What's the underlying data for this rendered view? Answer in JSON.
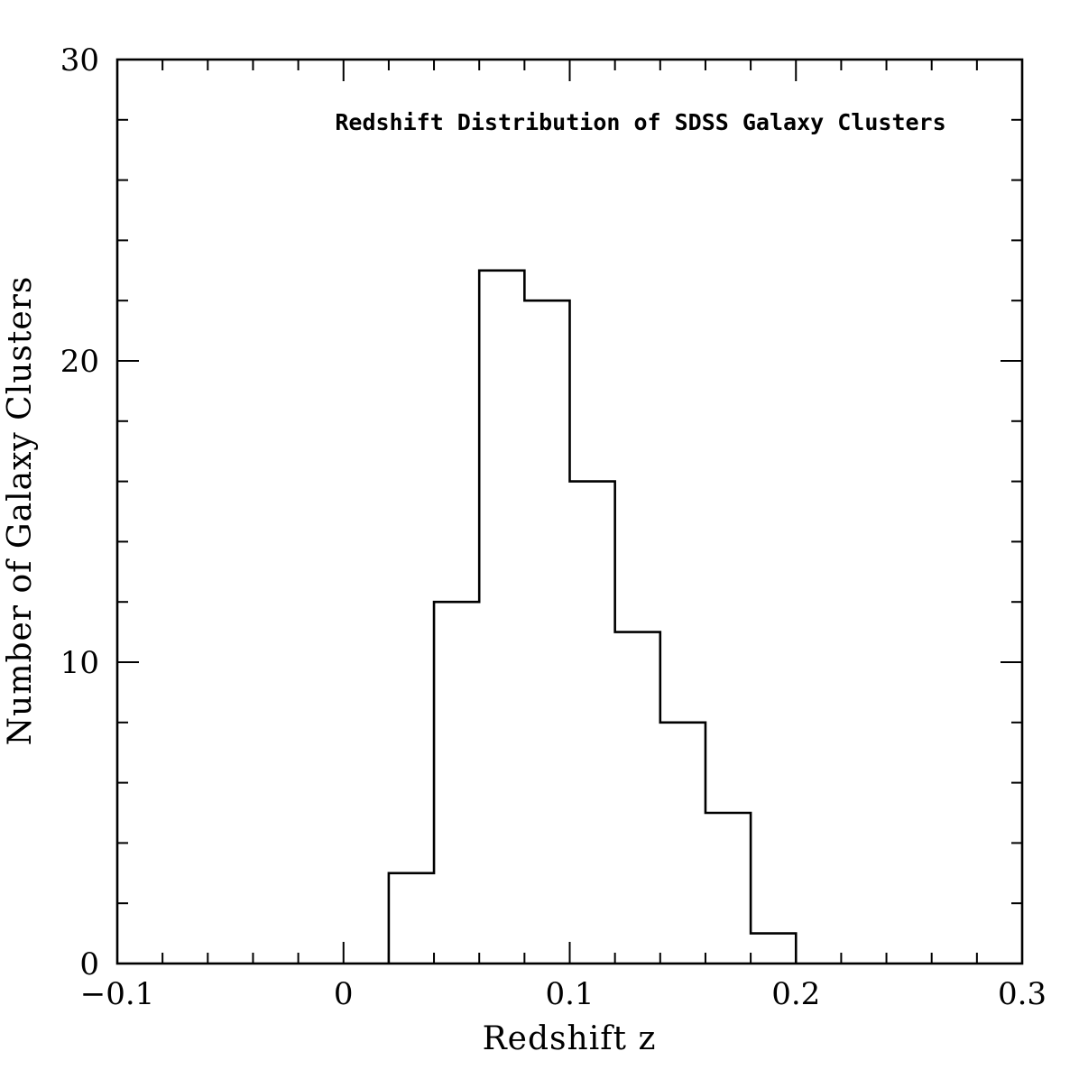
{
  "chart_data": {
    "type": "bar",
    "title": "Redshift Distribution of SDSS Galaxy Clusters",
    "xlabel": "Redshift z",
    "ylabel": "Number of Galaxy Clusters",
    "xlim": [
      -0.1,
      0.3
    ],
    "ylim": [
      0,
      30
    ],
    "x_tick_labels": [
      "−0.1",
      "0",
      "0.1",
      "0.2",
      "0.3"
    ],
    "y_tick_labels": [
      "0",
      "10",
      "20",
      "30"
    ],
    "bins": [
      {
        "x0": 0.02,
        "x1": 0.04,
        "count": 3
      },
      {
        "x0": 0.04,
        "x1": 0.06,
        "count": 12
      },
      {
        "x0": 0.06,
        "x1": 0.08,
        "count": 23
      },
      {
        "x0": 0.08,
        "x1": 0.1,
        "count": 22
      },
      {
        "x0": 0.1,
        "x1": 0.12,
        "count": 16
      },
      {
        "x0": 0.12,
        "x1": 0.14,
        "count": 11
      },
      {
        "x0": 0.14,
        "x1": 0.16,
        "count": 8
      },
      {
        "x0": 0.16,
        "x1": 0.18,
        "count": 5
      },
      {
        "x0": 0.18,
        "x1": 0.2,
        "count": 1
      }
    ],
    "histogram_style": "step",
    "grid": false,
    "legend": "none",
    "colors": {
      "line": "#000000",
      "background": "#ffffff"
    }
  }
}
